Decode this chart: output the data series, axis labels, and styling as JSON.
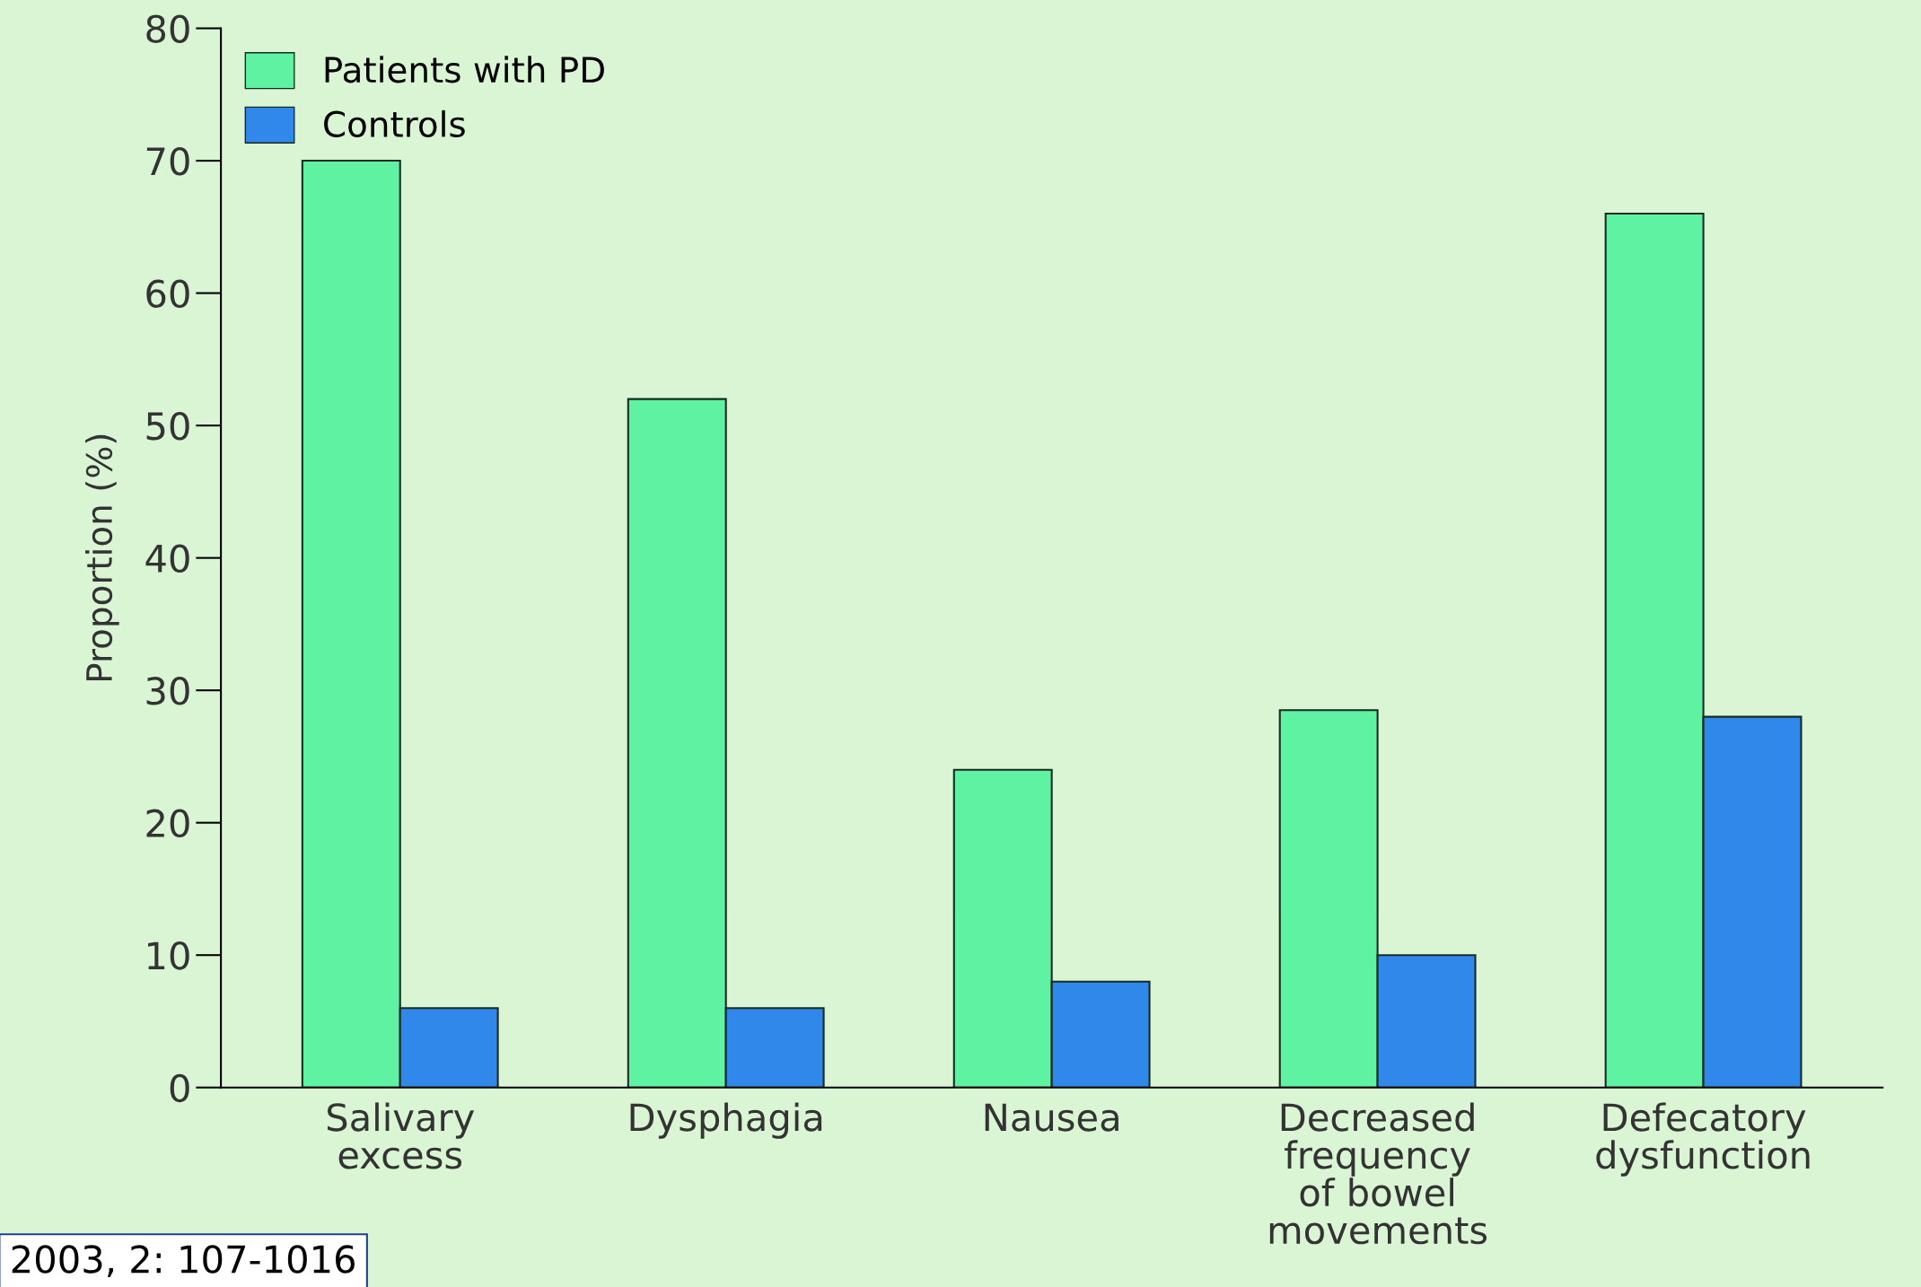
{
  "chart_data": {
    "type": "bar",
    "ylabel": "Proportion (%)",
    "categories": [
      "Salivary\nexcess",
      "Dysphagia",
      "Nausea",
      "Decreased\nfrequency\nof bowel\nmovements",
      "Defecatory\ndysfunction"
    ],
    "series": [
      {
        "name": "Patients with PD",
        "color": "#5ef2a2",
        "values": [
          70,
          52,
          24,
          28.5,
          66
        ]
      },
      {
        "name": "Controls",
        "color": "#2f88ea",
        "values": [
          6,
          6,
          8,
          10,
          28
        ]
      }
    ],
    "ylim": [
      0,
      80
    ],
    "yticks": [
      0,
      10,
      20,
      30,
      40,
      50,
      60,
      70,
      80
    ],
    "grid": false,
    "legend": "top left",
    "annotations": [
      "2003, 2: 107-1016"
    ]
  }
}
